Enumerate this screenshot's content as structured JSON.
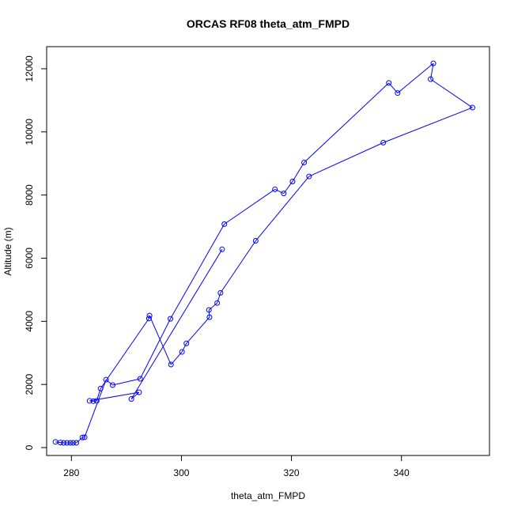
{
  "chart_data": {
    "type": "line",
    "title": "ORCAS RF08 theta_atm_FMPD",
    "xlabel": "theta_atm_FMPD",
    "ylabel": "Altitude (m)",
    "xlim": [
      275.5,
      356.0
    ],
    "ylim": [
      -250,
      12700
    ],
    "xticks": [
      280,
      300,
      320,
      340
    ],
    "yticks": [
      0,
      2000,
      4000,
      6000,
      8000,
      10000,
      12000
    ],
    "grid": false,
    "series_color": "#0000ff",
    "markers": "open-circle",
    "series": [
      {
        "x": [
          277.1,
          278.0,
          278.6,
          279.2,
          279.8,
          280.3,
          280.9,
          281.4,
          282.0,
          282.4,
          286.3,
          287.5,
          292.5,
          298.0,
          307.8,
          317.0,
          318.6,
          320.2,
          322.3,
          337.7,
          339.3,
          345.8,
          345.3,
          352.9,
          336.7,
          323.2,
          318.5,
          313.5,
          307.1,
          306.5,
          305.0,
          300.9,
          300.1,
          298.1,
          294.2,
          294.1,
          285.3,
          284.0,
          283.3,
          292.3,
          290.9,
          285.0,
          284.2,
          283.5,
          282.1,
          277.3,
          277.0,
          278.4,
          279.0,
          280.1,
          278.2,
          277.1
        ]
      },
      {
        "x": []
      }
    ],
    "points": [
      [
        277.1,
        180
      ],
      [
        278.0,
        160
      ],
      [
        278.6,
        150
      ],
      [
        279.2,
        150
      ],
      [
        279.8,
        150
      ],
      [
        280.3,
        150
      ],
      [
        280.9,
        150
      ],
      [
        282.0,
        320
      ],
      [
        282.4,
        330
      ],
      [
        286.3,
        2150
      ],
      [
        287.5,
        1980
      ],
      [
        292.5,
        2180
      ],
      [
        298.0,
        4080
      ],
      [
        307.8,
        7080
      ],
      [
        317.0,
        8180
      ],
      [
        318.6,
        8050
      ],
      [
        320.2,
        8430
      ],
      [
        322.3,
        9030
      ],
      [
        337.7,
        11550
      ],
      [
        339.3,
        11230
      ],
      [
        345.8,
        12170
      ],
      [
        345.3,
        11670
      ],
      [
        352.9,
        10770
      ],
      [
        336.7,
        9660
      ],
      [
        323.2,
        8590
      ],
      [
        313.5,
        6550
      ],
      [
        307.1,
        4900
      ],
      [
        306.5,
        4580
      ],
      [
        305.0,
        4360
      ],
      [
        305.1,
        4130
      ],
      [
        300.9,
        3300
      ],
      [
        300.1,
        3030
      ],
      [
        298.1,
        2630
      ],
      [
        294.2,
        4180
      ],
      [
        294.1,
        4090
      ],
      [
        285.3,
        1870
      ],
      [
        284.6,
        1480
      ],
      [
        284.0,
        1470
      ],
      [
        283.3,
        1480
      ],
      [
        292.3,
        1750
      ],
      [
        290.9,
        1540
      ],
      [
        307.4,
        6280
      ]
    ]
  }
}
